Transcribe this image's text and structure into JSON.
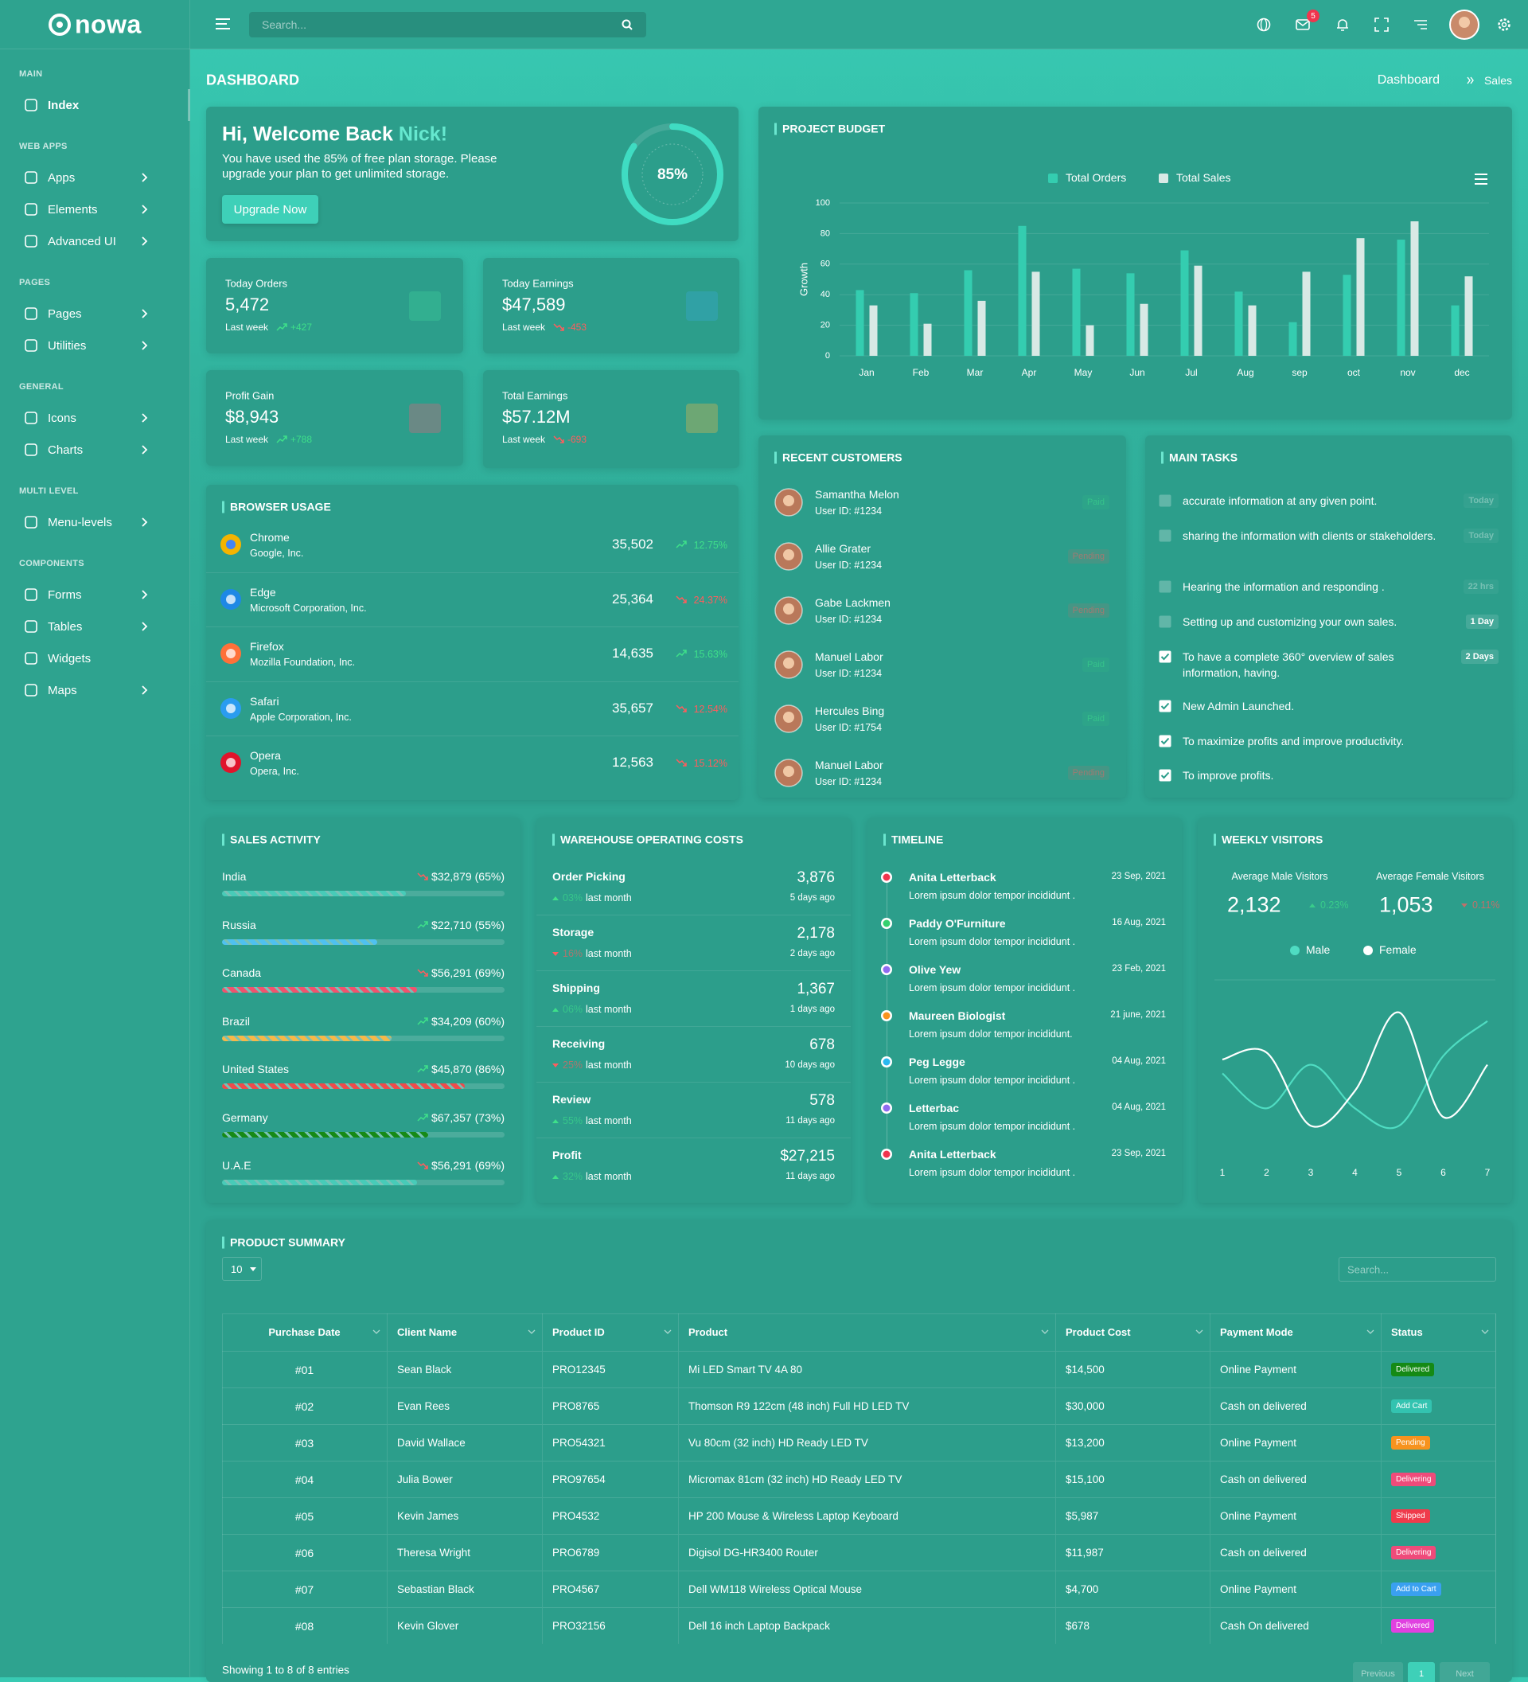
{
  "sidebar": {
    "logo": "nowa",
    "sections": [
      {
        "title": "MAIN",
        "items": [
          {
            "label": "Index",
            "active": true,
            "submenu": false
          }
        ]
      },
      {
        "title": "WEB APPS",
        "items": [
          {
            "label": "Apps",
            "active": false,
            "submenu": true
          },
          {
            "label": "Elements",
            "active": false,
            "submenu": true
          },
          {
            "label": "Advanced UI",
            "active": false,
            "submenu": true
          }
        ]
      },
      {
        "title": "PAGES",
        "items": [
          {
            "label": "Pages",
            "active": false,
            "submenu": true
          },
          {
            "label": "Utilities",
            "active": false,
            "submenu": true
          }
        ]
      },
      {
        "title": "GENERAL",
        "items": [
          {
            "label": "Icons",
            "active": false,
            "submenu": true
          },
          {
            "label": "Charts",
            "active": false,
            "submenu": true
          }
        ]
      },
      {
        "title": "MULTI LEVEL",
        "items": [
          {
            "label": "Menu-levels",
            "active": false,
            "submenu": true
          }
        ]
      },
      {
        "title": "COMPONENTS",
        "items": [
          {
            "label": "Forms",
            "active": false,
            "submenu": true
          },
          {
            "label": "Tables",
            "active": false,
            "submenu": true
          },
          {
            "label": "Widgets",
            "active": false,
            "submenu": false
          },
          {
            "label": "Maps",
            "active": false,
            "submenu": true
          }
        ]
      }
    ]
  },
  "header": {
    "search_placeholder": "Search...",
    "mail_badge": "5"
  },
  "page": {
    "title": "DASHBOARD",
    "breadcrumb": [
      "Dashboard",
      "Sales"
    ]
  },
  "welcome": {
    "greeting": "Hi, Welcome Back",
    "name": "Nick!",
    "message": "You have used the 85% of free plan storage. Please upgrade your plan to get unlimited storage.",
    "button": "Upgrade Now",
    "storage_used": 85,
    "storage_label": "85%"
  },
  "stats": [
    {
      "title": "Today Orders",
      "value": "5,472",
      "period": "Last week",
      "change": "+427",
      "trend": "up",
      "icon_color": "#3fcf9a"
    },
    {
      "title": "Today Earnings",
      "value": "$47,589",
      "period": "Last week",
      "change": "-453",
      "trend": "down",
      "icon_color": "#3aa7d8"
    },
    {
      "title": "Profit Gain",
      "value": "$8,943",
      "period": "Last week",
      "change": "+788",
      "trend": "up",
      "icon_color": "#e0607a"
    },
    {
      "title": "Total Earnings",
      "value": "$57.12M",
      "period": "Last week",
      "change": "-693",
      "trend": "down",
      "icon_color": "#e8b84a"
    }
  ],
  "browser_usage": {
    "title": "BROWSER USAGE",
    "rows": [
      {
        "name": "Chrome",
        "company": "Google, Inc.",
        "value": "35,502",
        "change": "12.75%",
        "trend": "up",
        "color": "#f4b400"
      },
      {
        "name": "Edge",
        "company": "Microsoft Corporation, Inc.",
        "value": "25,364",
        "change": "24.37%",
        "trend": "down",
        "color": "#1e88e5"
      },
      {
        "name": "Firefox",
        "company": "Mozilla Foundation, Inc.",
        "value": "14,635",
        "change": "15.63%",
        "trend": "up",
        "color": "#ff7139"
      },
      {
        "name": "Safari",
        "company": "Apple Corporation, Inc.",
        "value": "35,657",
        "change": "12.54%",
        "trend": "down",
        "color": "#2a9cf0"
      },
      {
        "name": "Opera",
        "company": "Opera, Inc.",
        "value": "12,563",
        "change": "15.12%",
        "trend": "down",
        "color": "#e0142b"
      }
    ]
  },
  "recent_customers": {
    "title": "RECENT CUSTOMERS",
    "rows": [
      {
        "name": "Samantha Melon",
        "user_id": "User ID: #1234",
        "status": "Paid",
        "trend": "up"
      },
      {
        "name": "Allie Grater",
        "user_id": "User ID: #1234",
        "status": "Pending",
        "trend": "down"
      },
      {
        "name": "Gabe Lackmen",
        "user_id": "User ID: #1234",
        "status": "Pending",
        "trend": "down"
      },
      {
        "name": "Manuel Labor",
        "user_id": "User ID: #1234",
        "status": "Paid",
        "trend": "up"
      },
      {
        "name": "Hercules Bing",
        "user_id": "User ID: #1754",
        "status": "Paid",
        "trend": "up"
      },
      {
        "name": "Manuel Labor",
        "user_id": "User ID: #1234",
        "status": "Pending",
        "trend": "down"
      }
    ]
  },
  "main_tasks": {
    "title": "MAIN TASKS",
    "items": [
      {
        "text": "accurate information at any given point.",
        "badge": "Today",
        "checked": false
      },
      {
        "text": "sharing the information with clients or stakeholders.",
        "badge": "Today",
        "checked": false
      },
      {
        "text": "Hearing the information and responding .",
        "badge": "22 hrs",
        "checked": false
      },
      {
        "text": "Setting up and customizing your own sales.",
        "badge": "1 Day",
        "checked": false
      },
      {
        "text": "To have a complete 360° overview of sales information, having.",
        "badge": "2 Days",
        "checked": true
      },
      {
        "text": "New Admin Launched.",
        "checked": true
      },
      {
        "text": "To maximize profits and improve productivity.",
        "checked": true
      },
      {
        "text": "To improve profits.",
        "checked": true
      }
    ]
  },
  "sales_activity": {
    "title": "SALES ACTIVITY",
    "rows": [
      {
        "country": "India",
        "amount": "$32,879",
        "percent": 65,
        "percent_label": "(65%)",
        "trend": "down",
        "color": "#48cbb8"
      },
      {
        "country": "Russia",
        "amount": "$22,710",
        "percent": 55,
        "percent_label": "(55%)",
        "trend": "up",
        "color": "#4fc1f0"
      },
      {
        "country": "Canada",
        "amount": "$56,291",
        "percent": 69,
        "percent_label": "(69%)",
        "trend": "down",
        "color": "#f1536e"
      },
      {
        "country": "Brazil",
        "amount": "$34,209",
        "percent": 60,
        "percent_label": "(60%)",
        "trend": "up",
        "color": "#f5b849"
      },
      {
        "country": "United States",
        "amount": "$45,870",
        "percent": 86,
        "percent_label": "(86%)",
        "trend": "up",
        "color": "#ef4b4b"
      },
      {
        "country": "Germany",
        "amount": "$67,357",
        "percent": 73,
        "percent_label": "(73%)",
        "trend": "up",
        "color": "#168a16"
      },
      {
        "country": "U.A.E",
        "amount": "$56,291",
        "percent": 69,
        "percent_label": "(69%)",
        "trend": "down",
        "color": "#48cbb8"
      }
    ]
  },
  "warehouse": {
    "title": "WAREHOUSE OPERATING COSTS",
    "rows": [
      {
        "name": "Order Picking",
        "value": "3,876",
        "change": "03%",
        "trend": "up",
        "period": "last month",
        "time": "5 days ago"
      },
      {
        "name": "Storage",
        "value": "2,178",
        "change": "16%",
        "trend": "down",
        "period": "last month",
        "time": "2 days ago"
      },
      {
        "name": "Shipping",
        "value": "1,367",
        "change": "06%",
        "trend": "up",
        "period": "last month",
        "time": "1 days ago"
      },
      {
        "name": "Receiving",
        "value": "678",
        "change": "25%",
        "trend": "down",
        "period": "last month",
        "time": "10 days ago"
      },
      {
        "name": "Review",
        "value": "578",
        "change": "55%",
        "trend": "up",
        "period": "last month",
        "time": "11 days ago"
      },
      {
        "name": "Profit",
        "value": "$27,215",
        "change": "32%",
        "trend": "up",
        "period": "last month",
        "time": "11 days ago"
      }
    ]
  },
  "timeline": {
    "title": "TIMELINE",
    "items": [
      {
        "name": "Anita Letterback",
        "date": "23 Sep, 2021",
        "text": "Lorem ipsum dolor tempor incididunt .",
        "color": "#f0354e"
      },
      {
        "name": "Paddy O'Furniture",
        "date": "16 Aug, 2021",
        "text": "Lorem ipsum dolor tempor incididunt .",
        "color": "#35d06e"
      },
      {
        "name": "Olive Yew",
        "date": "23 Feb, 2021",
        "text": "Lorem ipsum dolor tempor incididunt .",
        "color": "#8f6bf0"
      },
      {
        "name": "Maureen Biologist",
        "date": "21 june, 2021",
        "text": "Lorem ipsum dolor tempor incididunt.",
        "color": "#f7931e"
      },
      {
        "name": "Peg Legge",
        "date": "04 Aug, 2021",
        "text": "Lorem ipsum dolor tempor incididunt .",
        "color": "#2bb8f0"
      },
      {
        "name": "Letterbac",
        "date": "04 Aug, 2021",
        "text": "Lorem ipsum dolor tempor incididunt .",
        "color": "#8f6bf0"
      },
      {
        "name": "Anita Letterback",
        "date": "23 Sep, 2021",
        "text": "Lorem ipsum dolor tempor incididunt .",
        "color": "#f0354e"
      }
    ]
  },
  "weekly_visitors": {
    "stats": [
      {
        "label": "Average Male Visitors",
        "value": "2,132",
        "change": "0.23%",
        "trend": "up"
      },
      {
        "label": "Average Female Visitors",
        "value": "1,053",
        "change": "0.11%",
        "trend": "down"
      }
    ]
  },
  "chart_data": [
    {
      "type": "bar",
      "title": "PROJECT BUDGET",
      "ylabel": "Growth",
      "categories": [
        "Jan",
        "Feb",
        "Mar",
        "Apr",
        "May",
        "Jun",
        "Jul",
        "Aug",
        "sep",
        "oct",
        "nov",
        "dec"
      ],
      "series": [
        {
          "name": "Total Orders",
          "color": "#34cdb0",
          "values": [
            43,
            41,
            56,
            85,
            57,
            54,
            69,
            42,
            22,
            53,
            76,
            33
          ]
        },
        {
          "name": "Total Sales",
          "color": "#d8e9e5",
          "values": [
            33,
            21,
            36,
            55,
            20,
            34,
            59,
            33,
            55,
            77,
            88,
            52
          ]
        }
      ],
      "ylim": [
        0,
        100
      ],
      "yticks": [
        0,
        20,
        40,
        60,
        80,
        100
      ],
      "grid": true,
      "legend": "top"
    },
    {
      "type": "line",
      "title": "WEEKLY VISITORS",
      "x": [
        1,
        2,
        3,
        4,
        5,
        6,
        7
      ],
      "xlim": [
        1,
        7
      ],
      "xticks": [
        1,
        2,
        3,
        4,
        5,
        6,
        7
      ],
      "series": [
        {
          "name": "Male",
          "color": "#4fdcc2",
          "values": [
            50,
            30,
            55,
            30,
            20,
            60,
            80
          ]
        },
        {
          "name": "Female",
          "color": "#ffffff",
          "values": [
            58,
            62,
            20,
            40,
            85,
            25,
            55
          ]
        }
      ],
      "ylim": [
        0,
        100
      ],
      "legend": "top"
    }
  ],
  "product_summary": {
    "title": "PRODUCT SUMMARY",
    "page_length": "10",
    "search_placeholder": "Search...",
    "columns": [
      "Purchase Date",
      "Client Name",
      "Product ID",
      "Product",
      "Product Cost",
      "Payment Mode",
      "Status"
    ],
    "rows": [
      [
        "#01",
        "Sean Black",
        "PRO12345",
        "Mi LED Smart TV 4A 80",
        "$14,500",
        "Online Payment",
        "Delivered"
      ],
      [
        "#02",
        "Evan Rees",
        "PRO8765",
        "Thomson R9 122cm (48 inch) Full HD LED TV",
        "$30,000",
        "Cash on delivered",
        "Add Cart"
      ],
      [
        "#03",
        "David Wallace",
        "PRO54321",
        "Vu 80cm (32 inch) HD Ready LED TV",
        "$13,200",
        "Online Payment",
        "Pending"
      ],
      [
        "#04",
        "Julia Bower",
        "PRO97654",
        "Micromax 81cm (32 inch) HD Ready LED TV",
        "$15,100",
        "Cash on delivered",
        "Delivering"
      ],
      [
        "#05",
        "Kevin James",
        "PRO4532",
        "HP 200 Mouse & Wireless Laptop Keyboard",
        "$5,987",
        "Online Payment",
        "Shipped"
      ],
      [
        "#06",
        "Theresa Wright",
        "PRO6789",
        "Digisol DG-HR3400 Router",
        "$11,987",
        "Cash on delivered",
        "Delivering"
      ],
      [
        "#07",
        "Sebastian Black",
        "PRO4567",
        "Dell WM118 Wireless Optical Mouse",
        "$4,700",
        "Online Payment",
        "Add to Cart"
      ],
      [
        "#08",
        "Kevin Glover",
        "PRO32156",
        "Dell 16 inch Laptop Backpack",
        "$678",
        "Cash On delivered",
        "Delivered"
      ]
    ],
    "status_colors": [
      "#158a15",
      "#33c3b0",
      "#f7931e",
      "#ef4b7a",
      "#ef3b4b",
      "#ef4b7a",
      "#3aa0f0",
      "#e040e0"
    ],
    "info": "Showing 1 to 8 of 8 entries",
    "pagination": [
      "Previous",
      "1",
      "Next"
    ]
  }
}
